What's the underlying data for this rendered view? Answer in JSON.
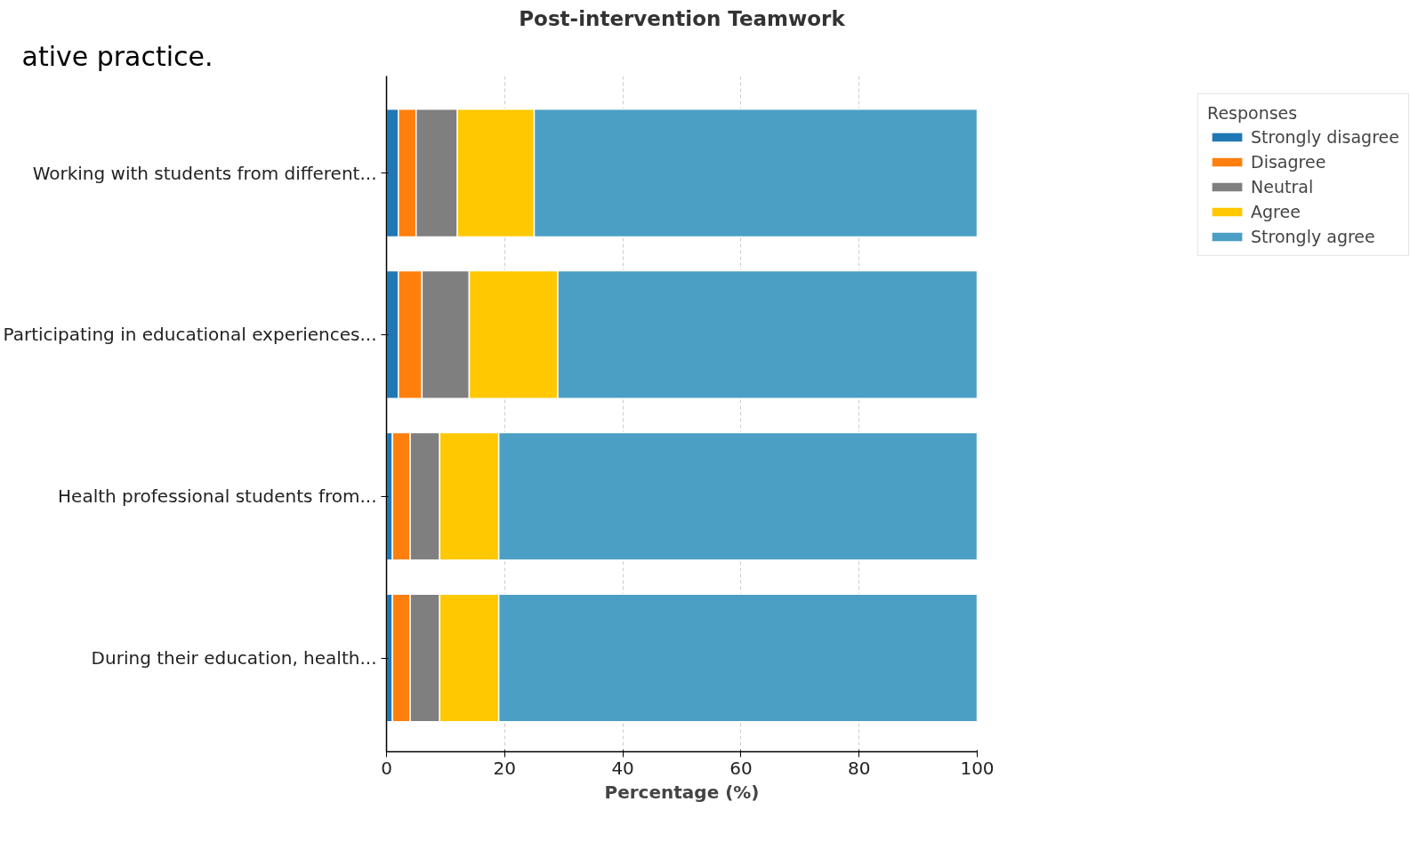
{
  "chart_data": {
    "type": "bar",
    "orientation": "horizontal",
    "stacked": true,
    "title": "Post-intervention Teamwork",
    "xlabel": "Percentage (%)",
    "legend_title": "Responses",
    "legend": "top right",
    "grid": true,
    "annotations": [
      "ative practice."
    ],
    "categories": [
      "Working with students from different...",
      "Participating in educational experiences...",
      "Health professional students from...",
      "During their education, health..."
    ],
    "series": [
      {
        "name": "Strongly disagree",
        "color": "#1f77b4",
        "values": [
          2,
          2,
          1,
          1
        ]
      },
      {
        "name": "Disagree",
        "color": "#ff7f0e",
        "values": [
          3,
          4,
          3,
          3
        ]
      },
      {
        "name": "Neutral",
        "color": "#7f7f7f",
        "values": [
          7,
          8,
          5,
          5
        ]
      },
      {
        "name": "Agree",
        "color": "#ffc800",
        "values": [
          13,
          15,
          10,
          10
        ]
      },
      {
        "name": "Strongly agree",
        "color": "#4b9fc4",
        "values": [
          75,
          71,
          81,
          81
        ]
      }
    ],
    "xlim": [
      0,
      100
    ],
    "xticks": [
      0,
      20,
      40,
      60,
      80,
      100
    ]
  }
}
